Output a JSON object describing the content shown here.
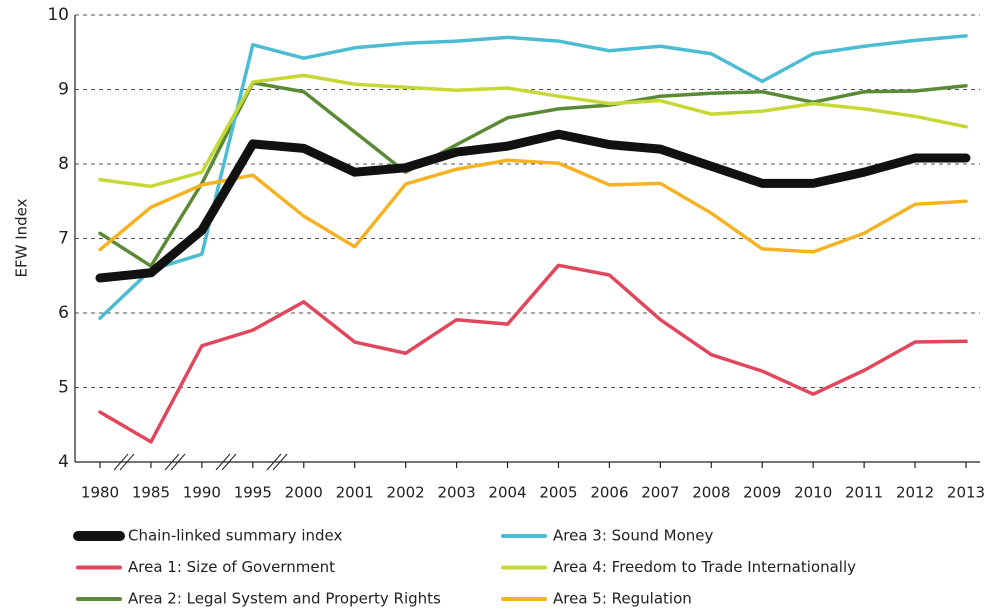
{
  "chart_data": {
    "type": "line",
    "y_label": "EFW Index",
    "categories": [
      "1980",
      "1985",
      "1990",
      "1995",
      "2000",
      "2001",
      "2002",
      "2003",
      "2004",
      "2005",
      "2006",
      "2007",
      "2008",
      "2009",
      "2010",
      "2011",
      "2012",
      "2013"
    ],
    "ylim": [
      4,
      10
    ],
    "yticks": [
      4,
      5,
      6,
      7,
      8,
      9,
      10
    ],
    "grid": true,
    "series": [
      {
        "name": "Chain-linked summary index",
        "color": "#111111",
        "values": [
          6.47,
          6.54,
          7.11,
          8.27,
          8.21,
          7.89,
          7.95,
          8.16,
          8.24,
          8.4,
          8.26,
          8.2,
          7.97,
          7.74,
          7.74,
          7.89,
          8.08,
          8.08
        ]
      },
      {
        "name": "Area 1: Size of Government",
        "color": "#e0475c",
        "values": [
          4.67,
          4.27,
          5.56,
          5.77,
          6.15,
          5.61,
          5.46,
          5.91,
          5.85,
          6.64,
          6.51,
          5.91,
          5.44,
          5.22,
          4.91,
          5.23,
          5.61,
          5.62
        ]
      },
      {
        "name": "Area 2: Legal System and Property Rights",
        "color": "#5a8a35",
        "values": [
          7.07,
          6.63,
          7.74,
          9.09,
          8.97,
          8.43,
          7.89,
          8.26,
          8.62,
          8.74,
          8.79,
          8.91,
          8.95,
          8.97,
          8.83,
          8.97,
          8.98,
          9.05
        ]
      },
      {
        "name": "Area 3: Sound Money",
        "color": "#4bbcd1",
        "values": [
          5.93,
          6.58,
          6.79,
          9.6,
          9.42,
          9.56,
          9.62,
          9.65,
          9.7,
          9.65,
          9.52,
          9.58,
          9.48,
          9.11,
          9.48,
          9.58,
          9.66,
          9.72
        ]
      },
      {
        "name": "Area 4: Freedom to Trade Internationally",
        "color": "#c5d833",
        "values": [
          7.79,
          7.7,
          7.89,
          9.1,
          9.19,
          9.07,
          9.03,
          8.99,
          9.02,
          8.91,
          8.81,
          8.85,
          8.67,
          8.71,
          8.81,
          8.74,
          8.64,
          8.5
        ]
      },
      {
        "name": "Area 5: Regulation",
        "color": "#f5b323",
        "values": [
          6.85,
          7.42,
          7.72,
          7.85,
          7.3,
          6.89,
          7.73,
          7.93,
          8.05,
          8.01,
          7.72,
          7.74,
          7.34,
          6.86,
          6.82,
          7.07,
          7.46,
          7.5
        ]
      }
    ]
  }
}
